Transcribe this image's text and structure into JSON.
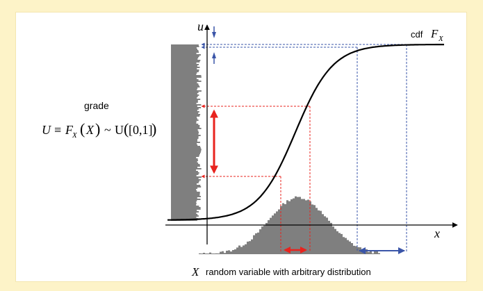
{
  "diagram": {
    "axis_u_label": "u",
    "axis_x_label": "x",
    "cdf_label_prefix": "cdf",
    "cdf_label_var": "F",
    "cdf_label_sub": "X",
    "grade_label": "grade",
    "grade_formula": {
      "U": "U",
      "eq": "≡",
      "F": "F",
      "sub": "X",
      "lpar": "(",
      "X": "X",
      "rpar": ")",
      "tilde": "~",
      "dist": "U",
      "interval": "[0,1]"
    },
    "caption_var": "X",
    "caption_text": "random variable with arbitrary distribution"
  },
  "colors": {
    "background": "#fdf3c8",
    "panel": "#ffffff",
    "histogram": "#7f7f7f",
    "curve": "#000000",
    "red_guides": "#e8231e",
    "blue_guides": "#3a55a8"
  }
}
